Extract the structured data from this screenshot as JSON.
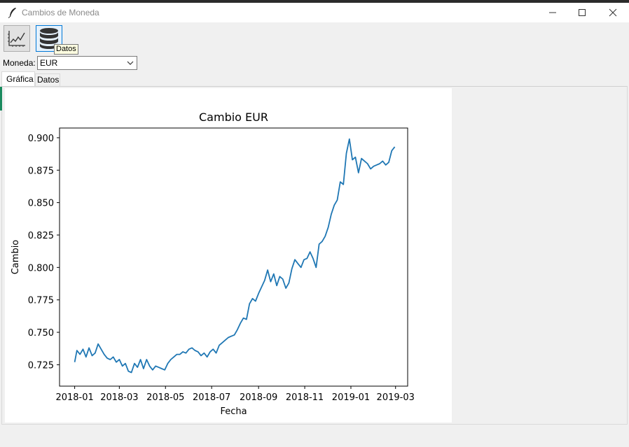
{
  "window": {
    "title": "Cambios de Moneda",
    "controls": [
      "minimize",
      "maximize",
      "close"
    ]
  },
  "toolbar": {
    "buttons": [
      {
        "icon": "line-chart-icon",
        "label": ""
      },
      {
        "icon": "database-icon",
        "label": ""
      }
    ],
    "tooltip": "Datos"
  },
  "currency": {
    "label": "Moneda:",
    "selected": "EUR"
  },
  "tabs": [
    "Gráfica",
    "Datos"
  ],
  "colors": {
    "line": "#1f77b4",
    "accent": "#0078d7"
  },
  "chart_data": {
    "type": "line",
    "title": "Cambio EUR",
    "xlabel": "Fecha",
    "ylabel": "Cambio",
    "xlim": [
      "2017-12-12",
      "2019-03-17"
    ],
    "ylim": [
      0.7085,
      0.9075
    ],
    "x_ticks": [
      "2018-01",
      "2018-03",
      "2018-05",
      "2018-07",
      "2018-09",
      "2018-11",
      "2019-01",
      "2019-03"
    ],
    "y_ticks": [
      "0.725",
      "0.750",
      "0.775",
      "0.800",
      "0.825",
      "0.850",
      "0.875",
      "0.900"
    ],
    "grid": false,
    "legend": "none",
    "series": [
      {
        "x": [
          "2018-01-01",
          "2018-01-04",
          "2018-01-08",
          "2018-01-12",
          "2018-01-16",
          "2018-01-20",
          "2018-01-24",
          "2018-01-28",
          "2018-02-01",
          "2018-02-05",
          "2018-02-09",
          "2018-02-13",
          "2018-02-17",
          "2018-02-21",
          "2018-02-25",
          "2018-03-01",
          "2018-03-05",
          "2018-03-09",
          "2018-03-13",
          "2018-03-17",
          "2018-03-21",
          "2018-03-25",
          "2018-03-29",
          "2018-04-02",
          "2018-04-06",
          "2018-04-10",
          "2018-04-14",
          "2018-04-18",
          "2018-04-22",
          "2018-04-26",
          "2018-04-30",
          "2018-05-04",
          "2018-05-08",
          "2018-05-12",
          "2018-05-16",
          "2018-05-20",
          "2018-05-24",
          "2018-05-28",
          "2018-06-01",
          "2018-06-05",
          "2018-06-09",
          "2018-06-13",
          "2018-06-17",
          "2018-06-21",
          "2018-06-25",
          "2018-06-29",
          "2018-07-03",
          "2018-07-07",
          "2018-07-11",
          "2018-07-15",
          "2018-07-19",
          "2018-07-23",
          "2018-07-27",
          "2018-07-31",
          "2018-08-04",
          "2018-08-08",
          "2018-08-12",
          "2018-08-16",
          "2018-08-20",
          "2018-08-24",
          "2018-08-28",
          "2018-09-01",
          "2018-09-05",
          "2018-09-09",
          "2018-09-13",
          "2018-09-17",
          "2018-09-21",
          "2018-09-25",
          "2018-09-29",
          "2018-10-03",
          "2018-10-07",
          "2018-10-11",
          "2018-10-15",
          "2018-10-19",
          "2018-10-23",
          "2018-10-27",
          "2018-10-31",
          "2018-11-04",
          "2018-11-08",
          "2018-11-12",
          "2018-11-16",
          "2018-11-20",
          "2018-11-24",
          "2018-11-28",
          "2018-12-02",
          "2018-12-06",
          "2018-12-10",
          "2018-12-14",
          "2018-12-18",
          "2018-12-22",
          "2018-12-26",
          "2018-12-30",
          "2019-01-03",
          "2019-01-07",
          "2019-01-11",
          "2019-01-15",
          "2019-01-19",
          "2019-01-23",
          "2019-01-27",
          "2019-01-31",
          "2019-02-04",
          "2019-02-08",
          "2019-02-12",
          "2019-02-16",
          "2019-02-20",
          "2019-02-24",
          "2019-02-28"
        ],
        "values": [
          0.727,
          0.736,
          0.733,
          0.737,
          0.731,
          0.738,
          0.732,
          0.734,
          0.741,
          0.737,
          0.733,
          0.73,
          0.729,
          0.731,
          0.727,
          0.729,
          0.724,
          0.726,
          0.72,
          0.719,
          0.726,
          0.723,
          0.729,
          0.722,
          0.729,
          0.724,
          0.721,
          0.724,
          0.723,
          0.722,
          0.721,
          0.726,
          0.729,
          0.731,
          0.733,
          0.733,
          0.735,
          0.734,
          0.737,
          0.738,
          0.736,
          0.735,
          0.732,
          0.734,
          0.731,
          0.735,
          0.737,
          0.734,
          0.74,
          0.742,
          0.744,
          0.746,
          0.747,
          0.748,
          0.752,
          0.757,
          0.761,
          0.76,
          0.772,
          0.776,
          0.774,
          0.78,
          0.785,
          0.79,
          0.798,
          0.789,
          0.795,
          0.786,
          0.793,
          0.791,
          0.784,
          0.788,
          0.799,
          0.806,
          0.803,
          0.8,
          0.806,
          0.807,
          0.812,
          0.807,
          0.8,
          0.818,
          0.82,
          0.824,
          0.831,
          0.841,
          0.848,
          0.852,
          0.866,
          0.864,
          0.888,
          0.899,
          0.883,
          0.885,
          0.873,
          0.884,
          0.882,
          0.88,
          0.876,
          0.878,
          0.879,
          0.88,
          0.882,
          0.879,
          0.881,
          0.89,
          0.893
        ]
      }
    ]
  }
}
